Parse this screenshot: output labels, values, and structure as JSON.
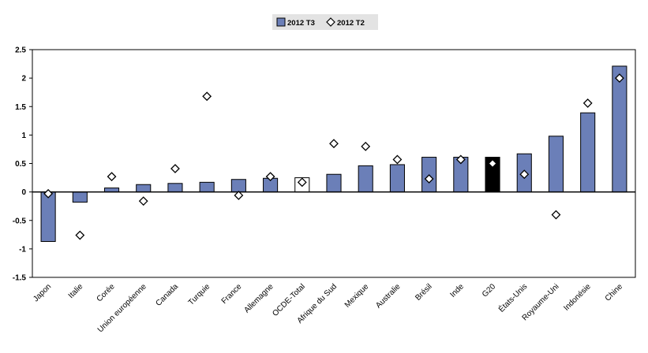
{
  "chart_data": {
    "type": "bar",
    "categories": [
      "Japon",
      "Italie",
      "Corée",
      "Union européenne",
      "Canada",
      "Turquie",
      "France",
      "Allemagne",
      "OCDE-Total",
      "Afrique du Sud",
      "Mexique",
      "Australie",
      "Brésil",
      "Inde",
      "G20",
      "États-Unis",
      "Royaume-Uni",
      "Indonésie",
      "Chine"
    ],
    "series": [
      {
        "name": "2012 T3",
        "kind": "bar",
        "color": "#6b7fb8",
        "values": [
          -0.87,
          -0.18,
          0.07,
          0.13,
          0.15,
          0.17,
          0.22,
          0.24,
          0.25,
          0.31,
          0.46,
          0.48,
          0.61,
          0.61,
          0.61,
          0.67,
          0.98,
          1.39,
          2.21
        ]
      },
      {
        "name": "2012 T2",
        "kind": "marker",
        "marker": "diamond",
        "values": [
          -0.03,
          -0.76,
          0.27,
          -0.16,
          0.41,
          1.68,
          -0.06,
          0.27,
          0.17,
          0.85,
          0.8,
          0.57,
          0.23,
          0.57,
          0.5,
          0.31,
          -0.4,
          1.56,
          2.0
        ]
      }
    ],
    "highlight": {
      "OCDE-Total": "#ffffff",
      "G20": "#000000"
    },
    "ylim": [
      -1.5,
      2.5
    ],
    "yticks": [
      "2.5",
      "2",
      "1.5",
      "1",
      "0.5",
      "0",
      "-0.5",
      "-1",
      "-1.5"
    ],
    "title": "",
    "xlabel": "",
    "ylabel": "",
    "legend_position": "top-center",
    "grid": false
  },
  "legend": {
    "items": [
      {
        "label": "2012 T3",
        "symbol": "bar-icon"
      },
      {
        "label": "2012 T2",
        "symbol": "diamond-icon"
      }
    ]
  }
}
